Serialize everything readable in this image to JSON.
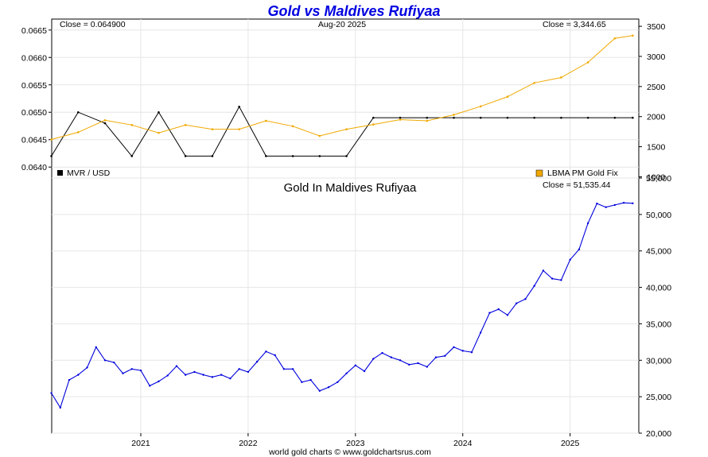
{
  "header": {
    "title": "Gold vs Maldives Rufiyaa",
    "footer": "world gold charts © www.goldchartsrus.com"
  },
  "chart_data": [
    {
      "type": "line",
      "date_label": "Aug-20  2025",
      "close_left": "Close = 0.064900",
      "close_right": "Close = 3,344.65",
      "grid": true,
      "y_left": {
        "ticks": [
          "0.0665",
          "0.0660",
          "0.0655",
          "0.0650",
          "0.0645",
          "0.0640"
        ],
        "lim": [
          0.0638,
          0.0667
        ]
      },
      "y_right": {
        "ticks": [
          "3500",
          "3000",
          "2500",
          "2000",
          "1500",
          "1000"
        ],
        "lim": [
          980,
          3620
        ]
      },
      "x": [
        "2020-03",
        "2020-06",
        "2020-09",
        "2020-12",
        "2021-03",
        "2021-06",
        "2021-09",
        "2021-12",
        "2022-03",
        "2022-06",
        "2022-09",
        "2022-12",
        "2023-03",
        "2023-06",
        "2023-09",
        "2023-12",
        "2024-03",
        "2024-06",
        "2024-09",
        "2024-12",
        "2025-03",
        "2025-06",
        "2025-08"
      ],
      "series": [
        {
          "name": "MVR / USD",
          "color": "#000000",
          "axis": "left",
          "values": [
            0.0642,
            0.065,
            0.0648,
            0.0642,
            0.065,
            0.0642,
            0.0642,
            0.0651,
            0.0642,
            0.0642,
            0.0642,
            0.0642,
            0.0649,
            0.0649,
            0.0649,
            0.0649,
            0.0649,
            0.0649,
            0.0649,
            0.0649,
            0.0649,
            0.0649,
            0.0649
          ]
        },
        {
          "name": "LBMA PM Gold Fix",
          "color": "#f0a800",
          "axis": "right",
          "values": [
            1620,
            1740,
            1940,
            1860,
            1730,
            1860,
            1790,
            1790,
            1930,
            1840,
            1680,
            1790,
            1870,
            1950,
            1930,
            2030,
            2170,
            2330,
            2560,
            2650,
            2900,
            3300,
            3345
          ]
        }
      ]
    },
    {
      "type": "line",
      "title": "Gold In Maldives Rufiyaa",
      "close": "Close = 51,535.44",
      "grid": true,
      "x_ticks": [
        "2021",
        "2022",
        "2023",
        "2024",
        "2025"
      ],
      "y_right": {
        "ticks": [
          "55,000",
          "50,000",
          "45,000",
          "40,000",
          "35,000",
          "30,000",
          "25,000",
          "20,000"
        ],
        "lim": [
          20000,
          55000
        ]
      },
      "x": [
        "2020-03",
        "2020-04",
        "2020-05",
        "2020-06",
        "2020-07",
        "2020-08",
        "2020-09",
        "2020-10",
        "2020-11",
        "2020-12",
        "2021-01",
        "2021-02",
        "2021-03",
        "2021-04",
        "2021-05",
        "2021-06",
        "2021-07",
        "2021-08",
        "2021-09",
        "2021-10",
        "2021-11",
        "2021-12",
        "2022-01",
        "2022-02",
        "2022-03",
        "2022-04",
        "2022-05",
        "2022-06",
        "2022-07",
        "2022-08",
        "2022-09",
        "2022-10",
        "2022-11",
        "2022-12",
        "2023-01",
        "2023-02",
        "2023-03",
        "2023-04",
        "2023-05",
        "2023-06",
        "2023-07",
        "2023-08",
        "2023-09",
        "2023-10",
        "2023-11",
        "2023-12",
        "2024-01",
        "2024-02",
        "2024-03",
        "2024-04",
        "2024-05",
        "2024-06",
        "2024-07",
        "2024-08",
        "2024-09",
        "2024-10",
        "2024-11",
        "2024-12",
        "2025-01",
        "2025-02",
        "2025-03",
        "2025-04",
        "2025-05",
        "2025-06",
        "2025-07",
        "2025-08"
      ],
      "series": [
        {
          "name": "Gold In Maldives Rufiyaa",
          "color": "#0000dd",
          "values": [
            25500,
            23500,
            27300,
            28000,
            29000,
            31800,
            30000,
            29700,
            28200,
            28800,
            28600,
            26500,
            27100,
            27900,
            29200,
            28000,
            28400,
            28000,
            27700,
            28000,
            27500,
            28800,
            28400,
            29800,
            31200,
            30700,
            28800,
            28800,
            27000,
            27300,
            25800,
            26300,
            27000,
            28200,
            29300,
            28500,
            30200,
            31000,
            30400,
            30000,
            29400,
            29600,
            29100,
            30400,
            30600,
            31800,
            31300,
            31100,
            33800,
            36500,
            37000,
            36200,
            37800,
            38400,
            40200,
            42300,
            41200,
            41000,
            43800,
            45200,
            48800,
            51500,
            51000,
            51300,
            51600,
            51535
          ]
        }
      ]
    }
  ]
}
